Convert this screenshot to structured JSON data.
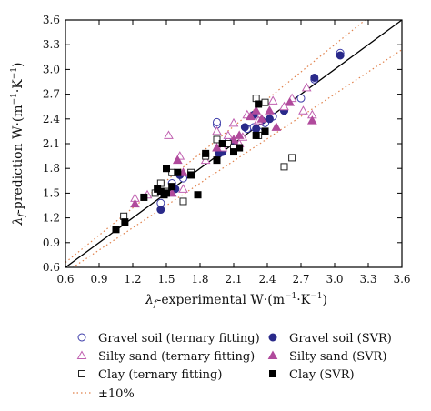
{
  "chart_data": {
    "type": "scatter",
    "title": "",
    "xlabel_sub": "f",
    "ylabel_sub": "f",
    "xlabel_text": "-experimental W·(m",
    "xlabel_tail": "·K",
    "xlabel_close": ")",
    "ylabel_text": "-prediction W·(m",
    "ylabel_tail": "·K",
    "ylabel_close": ")",
    "exp_sup": "−1",
    "lambda": "λ",
    "xlim": [
      0.6,
      3.6
    ],
    "ylim": [
      0.6,
      3.6
    ],
    "xticks": [
      "0.6",
      "0.9",
      "1.2",
      "1.5",
      "1.8",
      "2.1",
      "2.4",
      "2.7",
      "3.0",
      "3.3",
      "3.6"
    ],
    "yticks": [
      "0.6",
      "0.9",
      "1.2",
      "1.5",
      "1.8",
      "2.1",
      "2.4",
      "2.7",
      "3.0",
      "3.3",
      "3.6"
    ],
    "grid": false,
    "legend_placement": "bottom",
    "reference_lines": [
      {
        "name": "1:1",
        "slope": 1.0,
        "style": "solid",
        "color": "#000000"
      },
      {
        "name": "±10%",
        "slope": 1.1,
        "style": "dotted",
        "color": "#e0804a"
      },
      {
        "name": "±10%",
        "slope": 0.9,
        "style": "dotted",
        "color": "#e0804a"
      }
    ],
    "series": [
      {
        "name": "Gravel soil (ternary fitting)",
        "marker": "circle-open",
        "color": "#3a3aa8",
        "points": [
          [
            1.45,
            1.38
          ],
          [
            1.55,
            1.62
          ],
          [
            1.95,
            2.33
          ],
          [
            1.95,
            2.36
          ],
          [
            2.05,
            2.12
          ],
          [
            2.22,
            2.28
          ],
          [
            2.28,
            2.3
          ],
          [
            2.32,
            2.25
          ],
          [
            2.38,
            2.35
          ],
          [
            2.45,
            2.43
          ],
          [
            2.7,
            2.65
          ],
          [
            2.82,
            2.88
          ],
          [
            3.05,
            3.2
          ],
          [
            1.65,
            1.68
          ],
          [
            2.55,
            2.5
          ]
        ]
      },
      {
        "name": "Gravel soil (SVR)",
        "marker": "circle-filled",
        "color": "#2a2a8a",
        "points": [
          [
            1.45,
            1.3
          ],
          [
            1.58,
            1.55
          ],
          [
            1.97,
            1.98
          ],
          [
            2.1,
            2.1
          ],
          [
            2.2,
            2.3
          ],
          [
            2.3,
            2.28
          ],
          [
            2.35,
            2.38
          ],
          [
            2.42,
            2.4
          ],
          [
            2.55,
            2.5
          ],
          [
            2.82,
            2.9
          ],
          [
            3.05,
            3.17
          ],
          [
            1.62,
            1.72
          ],
          [
            2.0,
            2.0
          ],
          [
            2.28,
            2.45
          ]
        ]
      },
      {
        "name": "Silty sand (ternary fitting)",
        "marker": "triangle-open",
        "color": "#c060b0",
        "points": [
          [
            1.22,
            1.44
          ],
          [
            1.33,
            1.48
          ],
          [
            1.52,
            2.2
          ],
          [
            1.62,
            1.95
          ],
          [
            1.65,
            1.55
          ],
          [
            1.85,
            1.9
          ],
          [
            1.95,
            2.25
          ],
          [
            2.05,
            2.2
          ],
          [
            2.1,
            2.35
          ],
          [
            2.15,
            2.1
          ],
          [
            2.22,
            2.45
          ],
          [
            2.32,
            2.38
          ],
          [
            2.45,
            2.62
          ],
          [
            2.55,
            2.55
          ],
          [
            2.62,
            2.65
          ],
          [
            2.72,
            2.5
          ],
          [
            2.75,
            2.78
          ],
          [
            2.8,
            2.45
          ],
          [
            2.0,
            2.05
          ],
          [
            2.18,
            2.18
          ]
        ]
      },
      {
        "name": "Silty sand (SVR)",
        "marker": "triangle-filled",
        "color": "#b04a9c",
        "points": [
          [
            1.22,
            1.37
          ],
          [
            1.55,
            1.5
          ],
          [
            1.6,
            1.9
          ],
          [
            1.65,
            1.75
          ],
          [
            1.95,
            2.05
          ],
          [
            2.1,
            2.15
          ],
          [
            2.15,
            2.2
          ],
          [
            2.25,
            2.43
          ],
          [
            2.35,
            2.4
          ],
          [
            2.42,
            2.5
          ],
          [
            2.48,
            2.3
          ],
          [
            2.6,
            2.6
          ],
          [
            2.8,
            2.38
          ],
          [
            2.12,
            2.08
          ],
          [
            2.3,
            2.5
          ]
        ]
      },
      {
        "name": "Clay (ternary fitting)",
        "marker": "square-open",
        "color": "#222222",
        "points": [
          [
            1.12,
            1.22
          ],
          [
            1.4,
            1.5
          ],
          [
            1.45,
            1.62
          ],
          [
            1.55,
            1.75
          ],
          [
            1.65,
            1.4
          ],
          [
            1.72,
            1.75
          ],
          [
            1.85,
            1.95
          ],
          [
            1.95,
            2.15
          ],
          [
            2.05,
            2.1
          ],
          [
            2.1,
            2.05
          ],
          [
            2.3,
            2.65
          ],
          [
            2.38,
            2.6
          ],
          [
            2.55,
            1.82
          ],
          [
            2.62,
            1.93
          ],
          [
            1.5,
            1.52
          ],
          [
            2.32,
            2.2
          ]
        ]
      },
      {
        "name": "Clay (SVR)",
        "marker": "square-filled",
        "color": "#000000",
        "points": [
          [
            1.05,
            1.06
          ],
          [
            1.13,
            1.15
          ],
          [
            1.3,
            1.45
          ],
          [
            1.42,
            1.55
          ],
          [
            1.45,
            1.52
          ],
          [
            1.48,
            1.48
          ],
          [
            1.5,
            1.8
          ],
          [
            1.55,
            1.58
          ],
          [
            1.6,
            1.75
          ],
          [
            1.72,
            1.72
          ],
          [
            1.78,
            1.48
          ],
          [
            1.85,
            1.98
          ],
          [
            1.95,
            1.9
          ],
          [
            2.0,
            2.1
          ],
          [
            2.1,
            2.0
          ],
          [
            2.15,
            2.05
          ],
          [
            2.3,
            2.2
          ],
          [
            2.32,
            2.58
          ],
          [
            2.38,
            2.25
          ],
          [
            1.5,
            1.5
          ]
        ]
      }
    ],
    "legend": {
      "items": [
        {
          "label": "Gravel soil (ternary fitting)",
          "marker": "circle-open",
          "color": "#3a3aa8"
        },
        {
          "label": "Gravel soil (SVR)",
          "marker": "circle-filled",
          "color": "#2a2a8a"
        },
        {
          "label": "Silty sand (ternary fitting)",
          "marker": "triangle-open",
          "color": "#c060b0"
        },
        {
          "label": "Silty sand (SVR)",
          "marker": "triangle-filled",
          "color": "#b04a9c"
        },
        {
          "label": "Clay (ternary fitting)",
          "marker": "square-open",
          "color": "#222222"
        },
        {
          "label": "Clay (SVR)",
          "marker": "square-filled",
          "color": "#000000"
        },
        {
          "label": "±10%",
          "marker": "dotted-line",
          "color": "#e0804a"
        }
      ]
    }
  }
}
